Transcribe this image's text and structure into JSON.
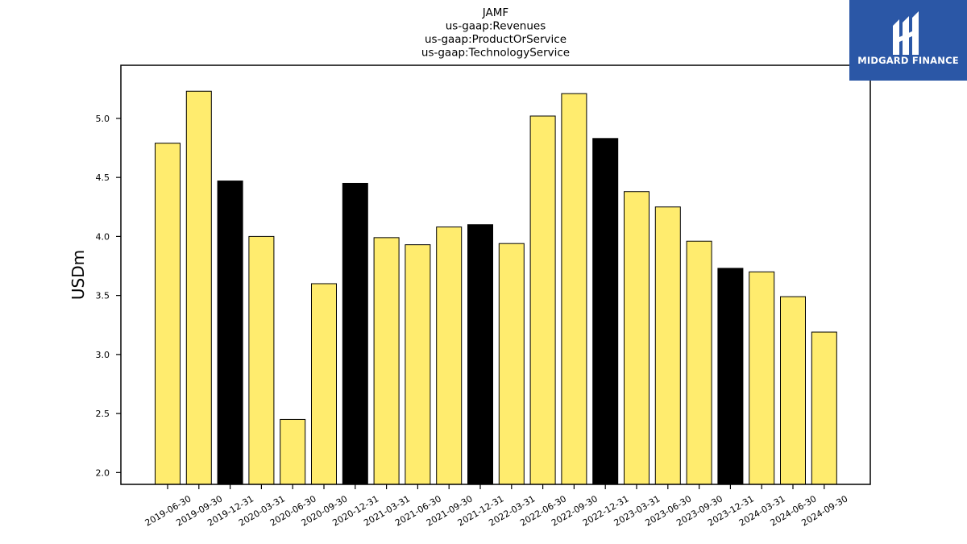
{
  "chart_data": {
    "type": "bar",
    "title_lines": [
      "JAMF",
      "us-gaap:Revenues",
      "us-gaap:ProductOrService",
      "us-gaap:TechnologyService"
    ],
    "ylabel": "USDm",
    "xlabel": "",
    "ylim": [
      1.9,
      5.45
    ],
    "yticks": [
      2.0,
      2.5,
      3.0,
      3.5,
      4.0,
      4.5,
      5.0
    ],
    "categories": [
      "2019-06-30",
      "2019-09-30",
      "2019-12-31",
      "2020-03-31",
      "2020-06-30",
      "2020-09-30",
      "2020-12-31",
      "2021-03-31",
      "2021-06-30",
      "2021-09-30",
      "2021-12-31",
      "2022-03-31",
      "2022-06-30",
      "2022-09-30",
      "2022-12-31",
      "2023-03-31",
      "2023-06-30",
      "2023-09-30",
      "2023-12-31",
      "2024-03-31",
      "2024-06-30",
      "2024-09-30"
    ],
    "values": [
      4.79,
      5.23,
      4.47,
      4.0,
      2.45,
      3.6,
      4.45,
      3.99,
      3.93,
      4.08,
      4.1,
      3.94,
      5.02,
      5.21,
      4.83,
      4.38,
      4.25,
      3.96,
      3.73,
      3.7,
      3.49,
      3.19
    ],
    "bar_colors": [
      "#ffec6e",
      "#ffec6e",
      "#000000",
      "#ffec6e",
      "#ffec6e",
      "#ffec6e",
      "#000000",
      "#ffec6e",
      "#ffec6e",
      "#ffec6e",
      "#000000",
      "#ffec6e",
      "#ffec6e",
      "#ffec6e",
      "#000000",
      "#ffec6e",
      "#ffec6e",
      "#ffec6e",
      "#000000",
      "#ffec6e",
      "#ffec6e",
      "#ffec6e"
    ],
    "grid": false,
    "legend": "none"
  },
  "logo": {
    "text": "MIDGARD FINANCE",
    "background": "#2b57a6"
  }
}
